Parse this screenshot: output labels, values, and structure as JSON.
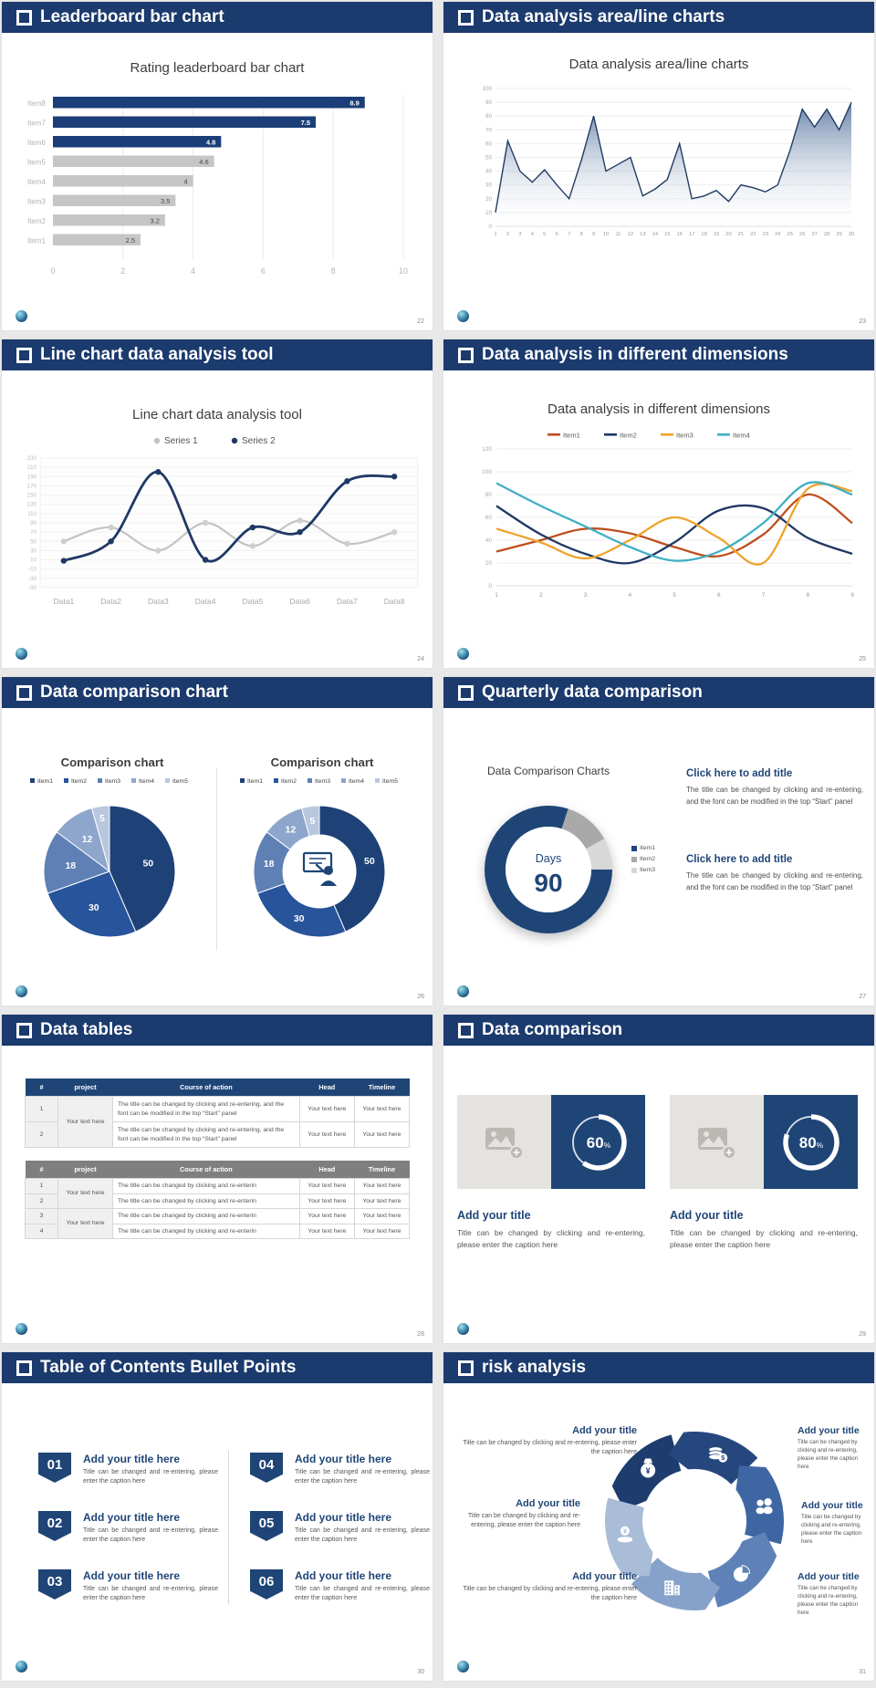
{
  "colors": {
    "header_bg": "#1b3a6d",
    "navy": "#1f4577",
    "bar_navy": "#1c3e78",
    "bar_gray": "#c6c6c6"
  },
  "slides": [
    {
      "header": "Leaderboard bar chart",
      "page": "22",
      "chart": {
        "type": "hbar",
        "title": "Rating leaderboard bar chart",
        "categories": [
          "Item8",
          "Item7",
          "Item6",
          "Item5",
          "Item4",
          "Item3",
          "Item2",
          "Item1"
        ],
        "values": [
          8.9,
          7.5,
          4.8,
          4.6,
          4,
          3.5,
          3.2,
          2.5
        ],
        "bar_colors": [
          "#1c3e78",
          "#1c3e78",
          "#1c3e78",
          "#c6c6c6",
          "#c6c6c6",
          "#c6c6c6",
          "#c6c6c6",
          "#c6c6c6"
        ],
        "xticks": [
          0,
          2,
          4,
          6,
          8,
          10
        ],
        "xmax": 10
      }
    },
    {
      "header": "Data analysis area/line charts",
      "page": "23",
      "chart": {
        "type": "area",
        "title": "Data analysis area/line charts",
        "x": [
          1,
          2,
          3,
          4,
          5,
          6,
          7,
          8,
          9,
          10,
          11,
          12,
          13,
          14,
          15,
          16,
          17,
          18,
          19,
          20,
          21,
          22,
          23,
          24,
          25,
          26,
          27,
          28,
          29,
          30
        ],
        "values": [
          10,
          62,
          40,
          32,
          41,
          30,
          20,
          48,
          80,
          40,
          45,
          50,
          22,
          27,
          34,
          60,
          20,
          22,
          26,
          18,
          30,
          28,
          25,
          30,
          55,
          85,
          72,
          85,
          70,
          90
        ],
        "ylim": [
          0,
          100
        ],
        "ytick_step": 10,
        "line_color": "#203a64",
        "fill_top": "#56749f"
      }
    },
    {
      "header": "Line chart data analysis tool",
      "page": "24",
      "chart": {
        "type": "line2",
        "title": "Line chart data analysis tool",
        "categories": [
          "Data1",
          "Data2",
          "Data3",
          "Data4",
          "Data5",
          "Data6",
          "Data7",
          "Data8"
        ],
        "ylim": [
          -50,
          230
        ],
        "ytick_step": 20,
        "series": [
          {
            "name": "Series 1",
            "color": "#c3c3c3",
            "marker": "#cfcfcf",
            "values": [
              50,
              80,
              30,
              90,
              40,
              95,
              45,
              70
            ]
          },
          {
            "name": "Series 2",
            "color": "#1f3864",
            "marker": "#1f3864",
            "values": [
              8,
              50,
              200,
              10,
              80,
              70,
              180,
              190
            ]
          }
        ]
      }
    },
    {
      "header": "Data analysis in different dimensions",
      "page": "25",
      "chart": {
        "type": "multiline",
        "title": "Data analysis in different dimensions",
        "x": [
          1,
          2,
          3,
          4,
          5,
          6,
          7,
          8,
          9
        ],
        "ylim": [
          0,
          120
        ],
        "ytick_step": 20,
        "series": [
          {
            "name": "Item1",
            "color": "#bf4e1f",
            "values": [
              30,
              40,
              50,
              46,
              34,
              26,
              45,
              80,
              55
            ]
          },
          {
            "name": "Item2",
            "color": "#1f3864",
            "values": [
              70,
              45,
              28,
              20,
              38,
              66,
              68,
              42,
              28
            ]
          },
          {
            "name": "Item3",
            "color": "#efa32a",
            "values": [
              50,
              38,
              24,
              40,
              60,
              42,
              20,
              85,
              83
            ]
          },
          {
            "name": "Item4",
            "color": "#3fafc4",
            "values": [
              90,
              70,
              52,
              34,
              22,
              30,
              55,
              90,
              80
            ]
          }
        ]
      }
    },
    {
      "header": "Data comparison chart",
      "page": "26",
      "pie": {
        "type": "pie",
        "title": "Comparison chart",
        "labels": [
          "Item1",
          "Item2",
          "Item3",
          "Item4",
          "Item5"
        ],
        "values": [
          50,
          30,
          18,
          12,
          5
        ],
        "colors": [
          "#1e4278",
          "#27549b",
          "#5f80b5",
          "#8fa6cc",
          "#b9c7de"
        ],
        "inner": 0
      },
      "donut": {
        "type": "pie",
        "title": "Comparison chart",
        "labels": [
          "Item1",
          "Item2",
          "Item3",
          "Item4",
          "Item5"
        ],
        "values": [
          50,
          30,
          18,
          12,
          5
        ],
        "colors": [
          "#1e4278",
          "#27549b",
          "#5f80b5",
          "#8fa6cc",
          "#b9c7de"
        ],
        "inner": 40,
        "center_icon": "presenter",
        "icon_color": "#1f4577"
      }
    },
    {
      "header": "Quarterly data comparison",
      "page": "27",
      "chart": {
        "type": "qdonut",
        "title": "Data Comparison Charts",
        "center_label": "Days",
        "center_value": "90",
        "start_angle": 18,
        "segments": [
          {
            "value": 12,
            "color": "#a9a9a9"
          },
          {
            "value": 8,
            "color": "#d8d8d8"
          },
          {
            "value": 80,
            "color": "#1f4577"
          }
        ],
        "legend": [
          {
            "label": "Item1",
            "color": "#1f4577"
          },
          {
            "label": "Item2",
            "color": "#a9a9a9"
          },
          {
            "label": "Item3",
            "color": "#d8d8d8"
          }
        ]
      },
      "blocks": [
        {
          "title": "Click here to add title",
          "body": "The title can be changed by clicking and re-entering, and the font can be modified in the top “Start” panel"
        },
        {
          "title": "Click here to add title",
          "body": "The title can be changed by clicking and re-entering, and the font can be modified in the top “Start” panel"
        }
      ]
    },
    {
      "header": "Data tables",
      "page": "28",
      "tablespec": {
        "type": "tables",
        "tables": [
          {
            "style": "blue",
            "columns": [
              "#",
              "project",
              "Course of action",
              "Head",
              "Timeline"
            ],
            "rows": [
              [
                {
                  "t": "1",
                  "sh": true
                },
                {
                  "t": "Your text here",
                  "rs": 2,
                  "sh": true
                },
                {
                  "t": "The title can be changed by clicking and re-entering, and the font can be modified in the top “Start” panel",
                  "a": "left"
                },
                {
                  "t": "Your text here"
                },
                {
                  "t": "Your text here"
                }
              ],
              [
                {
                  "t": "2",
                  "sh": true
                },
                {
                  "t": "The title can be changed by clicking and re-entering, and the font can be modified in the top “Start” panel",
                  "a": "left"
                },
                {
                  "t": "Your text here"
                },
                {
                  "t": "Your text here"
                }
              ]
            ]
          },
          {
            "style": "gray",
            "columns": [
              "#",
              "project",
              "Course of action",
              "Head",
              "Timeline"
            ],
            "rows": [
              [
                {
                  "t": "1",
                  "sh": true
                },
                {
                  "t": "Your text here",
                  "rs": 2,
                  "sh": true
                },
                {
                  "t": "The title can be changed by clicking and re-enterin",
                  "a": "left"
                },
                {
                  "t": "Your text here"
                },
                {
                  "t": "Your text here"
                }
              ],
              [
                {
                  "t": "2",
                  "sh": true
                },
                {
                  "t": "The title can be changed by clicking and re-enterin",
                  "a": "left"
                },
                {
                  "t": "Your text here"
                },
                {
                  "t": "Your text here"
                }
              ],
              [
                {
                  "t": "3",
                  "sh": true
                },
                {
                  "t": "Your text here",
                  "rs": 2,
                  "sh": true
                },
                {
                  "t": "The title can be changed by clicking and re-enterin",
                  "a": "left"
                },
                {
                  "t": "Your text here"
                },
                {
                  "t": "Your text here"
                }
              ],
              [
                {
                  "t": "4",
                  "sh": true
                },
                {
                  "t": "The title can be changed by clicking and re-enterin",
                  "a": "left"
                },
                {
                  "t": "Your text here"
                },
                {
                  "t": "Your text here"
                }
              ]
            ]
          }
        ]
      }
    },
    {
      "header": "Data comparison",
      "page": "29",
      "cards": [
        {
          "title": "Add your title",
          "caption": "Title can be changed by clicking and re-entering, please enter the caption here",
          "ring": {
            "type": "ring",
            "percent": 60,
            "unit": "%"
          }
        },
        {
          "title": "Add your title",
          "caption": "Title can be changed by clicking and re-entering, please enter the caption here",
          "ring": {
            "type": "ring",
            "percent": 80,
            "unit": "%"
          }
        }
      ]
    },
    {
      "header": "Table of Contents Bullet Points",
      "page": "30",
      "items": [
        {
          "num": "01",
          "title": "Add your title here",
          "caption": "Title can be changed and re-entering, please enter the caption here"
        },
        {
          "num": "02",
          "title": "Add your title here",
          "caption": "Title can be changed and re-entering, please enter the caption here"
        },
        {
          "num": "03",
          "title": "Add your title here",
          "caption": "Title can be changed and re-entering, please enter the caption here"
        },
        {
          "num": "04",
          "title": "Add your title here",
          "caption": "Title can be changed and re-entering, please enter the caption here"
        },
        {
          "num": "05",
          "title": "Add your title here",
          "caption": "Title can be changed and re-entering, please enter the caption here"
        },
        {
          "num": "06",
          "title": "Add your title here",
          "caption": "Title can be changed and re-entering, please enter the caption here"
        }
      ]
    },
    {
      "header": "risk analysis",
      "page": "31",
      "wheel": {
        "type": "wheel",
        "colors": [
          "#1e3c6e",
          "#26477e",
          "#3e66a3",
          "#5e82b7",
          "#86a2ca",
          "#a9bcd8"
        ],
        "icons": [
          "money-bag",
          "coins",
          "people",
          "pie-chart",
          "building",
          "hand-coin"
        ]
      },
      "blocks": [
        {
          "title": "Add your title",
          "caption": "Title can be changed by clicking and re-entering, please enter the caption here"
        },
        {
          "title": "Add your title",
          "caption": "Title can be changed by clicking and re-entering, please enter the caption here"
        },
        {
          "title": "Add your title",
          "caption": "Title can be changed by clicking and re-entering, please enter the caption here"
        },
        {
          "title": "Add your title",
          "caption": "Title can be changed by clicking and re-entering, please enter the caption here"
        },
        {
          "title": "Add your title",
          "caption": "Title can be changed by clicking and re-entering, please enter the caption here"
        },
        {
          "title": "Add your title",
          "caption": "Title can be changed by clicking and re-entering, please enter the caption here"
        }
      ]
    }
  ]
}
